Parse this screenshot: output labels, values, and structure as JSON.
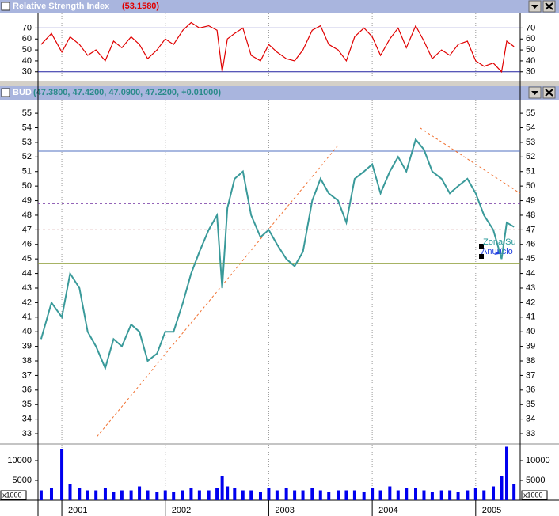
{
  "chart_data": [
    {
      "type": "line",
      "title": "Relative Strength Index",
      "subtitle": "(53.1580)",
      "color": "#e00000",
      "x": [
        2000.8,
        2000.9,
        2001.0,
        2001.08,
        2001.17,
        2001.25,
        2001.33,
        2001.42,
        2001.5,
        2001.58,
        2001.67,
        2001.75,
        2001.83,
        2001.92,
        2002.0,
        2002.08,
        2002.17,
        2002.25,
        2002.33,
        2002.42,
        2002.5,
        2002.55,
        2002.6,
        2002.67,
        2002.75,
        2002.83,
        2002.92,
        2003.0,
        2003.08,
        2003.17,
        2003.25,
        2003.33,
        2003.42,
        2003.5,
        2003.58,
        2003.67,
        2003.75,
        2003.83,
        2003.92,
        2004.0,
        2004.08,
        2004.17,
        2004.25,
        2004.33,
        2004.42,
        2004.5,
        2004.58,
        2004.67,
        2004.75,
        2004.83,
        2004.92,
        2005.0,
        2005.08,
        2005.17,
        2005.25,
        2005.3,
        2005.37
      ],
      "values": [
        55,
        65,
        48,
        62,
        55,
        45,
        50,
        40,
        58,
        52,
        62,
        55,
        42,
        50,
        60,
        55,
        68,
        75,
        70,
        72,
        68,
        30,
        60,
        65,
        70,
        45,
        40,
        55,
        48,
        42,
        40,
        50,
        68,
        72,
        55,
        50,
        40,
        62,
        70,
        62,
        45,
        60,
        70,
        52,
        72,
        58,
        42,
        50,
        45,
        55,
        58,
        40,
        35,
        38,
        30,
        58,
        53
      ],
      "xlim": [
        2000.77,
        2005.43
      ],
      "ylim": [
        22.6,
        83.3
      ],
      "yticks": [
        30,
        40,
        50,
        60,
        70
      ],
      "levels": [
        {
          "value": 70,
          "color": "#2020a0"
        },
        {
          "value": 30,
          "color": "#2020a0"
        }
      ]
    },
    {
      "type": "line",
      "title": "BUD",
      "subtitle": "(47.3800, 47.4200, 47.0900, 47.2200, +0.01000)",
      "color": "#3a9a9a",
      "x": [
        2000.8,
        2000.9,
        2001.0,
        2001.08,
        2001.17,
        2001.25,
        2001.33,
        2001.42,
        2001.5,
        2001.58,
        2001.67,
        2001.75,
        2001.83,
        2001.92,
        2002.0,
        2002.08,
        2002.17,
        2002.25,
        2002.33,
        2002.42,
        2002.5,
        2002.55,
        2002.6,
        2002.67,
        2002.75,
        2002.83,
        2002.92,
        2003.0,
        2003.08,
        2003.17,
        2003.25,
        2003.33,
        2003.42,
        2003.5,
        2003.58,
        2003.67,
        2003.75,
        2003.83,
        2003.92,
        2004.0,
        2004.08,
        2004.17,
        2004.25,
        2004.33,
        2004.42,
        2004.5,
        2004.58,
        2004.67,
        2004.75,
        2004.83,
        2004.92,
        2005.0,
        2005.08,
        2005.17,
        2005.25,
        2005.3,
        2005.37
      ],
      "values": [
        39.5,
        42,
        41,
        44,
        43,
        40,
        39,
        37.5,
        39.5,
        39,
        40.5,
        40,
        38,
        38.5,
        40,
        40,
        42,
        44,
        45.5,
        47,
        48,
        43,
        48.5,
        50.5,
        51,
        48,
        46.5,
        47,
        46,
        45,
        44.5,
        45.5,
        49,
        50.5,
        49.5,
        49,
        47.5,
        50.5,
        51,
        51.5,
        49.5,
        51,
        52,
        51,
        53.2,
        52.5,
        51,
        50.5,
        49.5,
        50,
        50.5,
        49.5,
        48,
        47,
        45,
        47.5,
        47.2
      ],
      "xlim": [
        2000.77,
        2005.43
      ],
      "ylim": [
        32.35,
        55.93
      ],
      "yticks": [
        33,
        34,
        35,
        36,
        37,
        38,
        39,
        40,
        41,
        42,
        43,
        44,
        45,
        46,
        47,
        48,
        49,
        50,
        51,
        52,
        53,
        54,
        55
      ],
      "levels": [
        {
          "value": 52.4,
          "color": "#5070c0"
        },
        {
          "value": 48.8,
          "color": "#7030a0"
        },
        {
          "value": 47,
          "color": "#a03030"
        },
        {
          "value": 45.2,
          "color": "#8a9a30"
        },
        {
          "value": 44.7,
          "color": "#8a9a30"
        }
      ],
      "trendlines": [
        {
          "x": [
            2001.34,
            2003.67
          ],
          "y": [
            32.8,
            52.8
          ]
        },
        {
          "x": [
            2004.46,
            2005.43
          ],
          "y": [
            54.0,
            49.5
          ]
        }
      ],
      "annotations": [
        "Zona Su",
        "Anuncio"
      ]
    },
    {
      "type": "bar",
      "unit_label": "x1000",
      "color": "#0000ee",
      "x": [
        2000.8,
        2000.9,
        2001.0,
        2001.08,
        2001.17,
        2001.25,
        2001.33,
        2001.42,
        2001.5,
        2001.58,
        2001.67,
        2001.75,
        2001.83,
        2001.92,
        2002.0,
        2002.08,
        2002.17,
        2002.25,
        2002.33,
        2002.42,
        2002.5,
        2002.55,
        2002.6,
        2002.67,
        2002.75,
        2002.83,
        2002.92,
        2003.0,
        2003.08,
        2003.17,
        2003.25,
        2003.33,
        2003.42,
        2003.5,
        2003.58,
        2003.67,
        2003.75,
        2003.83,
        2003.92,
        2004.0,
        2004.08,
        2004.17,
        2004.25,
        2004.33,
        2004.42,
        2004.5,
        2004.58,
        2004.67,
        2004.75,
        2004.83,
        2004.92,
        2005.0,
        2005.08,
        2005.17,
        2005.25,
        2005.3,
        2005.37
      ],
      "values": [
        2500,
        3000,
        13000,
        4000,
        3000,
        2500,
        2500,
        3000,
        2000,
        2500,
        2500,
        3500,
        2500,
        2000,
        2500,
        2000,
        2500,
        3000,
        2500,
        2500,
        3000,
        6000,
        3500,
        3000,
        2500,
        2500,
        2000,
        3000,
        2500,
        3000,
        2500,
        2500,
        3000,
        2500,
        2000,
        2500,
        2500,
        2500,
        2000,
        3000,
        2500,
        3500,
        2500,
        3000,
        3000,
        2500,
        2000,
        2500,
        2500,
        2000,
        2500,
        3000,
        2500,
        3500,
        6000,
        13500,
        4000
      ],
      "xlim": [
        2000.77,
        2005.43
      ],
      "ylim": [
        0,
        14000
      ],
      "yticks": [
        5000,
        10000
      ],
      "xticks": [
        2001,
        2002,
        2003,
        2004,
        2005
      ]
    }
  ]
}
